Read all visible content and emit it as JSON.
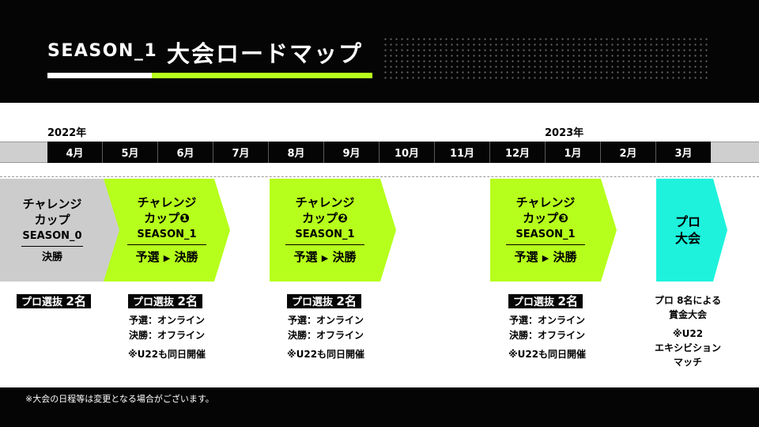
{
  "header": {
    "brand": "SEASON_1",
    "title": "大会ロードマップ",
    "colors": {
      "background": "#050505",
      "accent": "#b6ff1c"
    }
  },
  "timeline": {
    "year_start": "2022年",
    "year_end": "2023年",
    "months": [
      "4月",
      "5月",
      "6月",
      "7月",
      "8月",
      "9月",
      "10月",
      "11月",
      "12月",
      "1月",
      "2月",
      "3月"
    ]
  },
  "events": [
    {
      "name_line1": "チャレンジ",
      "name_line2": "カップ",
      "season": "SEASON_0",
      "stage": "決勝",
      "badge": "プロ選抜",
      "badge_count": "2名",
      "color": "#cccccc"
    },
    {
      "name_line1": "チャレンジ",
      "name_line2": "カップ❶",
      "season": "SEASON_1",
      "stage_from": "予選",
      "stage_arrow": "▶",
      "stage_to": "決勝",
      "badge": "プロ選抜",
      "badge_count": "2名",
      "notes": [
        "予選：オンライン",
        "決勝：オフライン",
        "※U22も同日開催"
      ],
      "color": "#b6ff1c"
    },
    {
      "name_line1": "チャレンジ",
      "name_line2": "カップ❷",
      "season": "SEASON_1",
      "stage_from": "予選",
      "stage_arrow": "▶",
      "stage_to": "決勝",
      "badge": "プロ選抜",
      "badge_count": "2名",
      "notes": [
        "予選：オンライン",
        "決勝：オフライン",
        "※U22も同日開催"
      ],
      "color": "#b6ff1c"
    },
    {
      "name_line1": "チャレンジ",
      "name_line2": "カップ❸",
      "season": "SEASON_1",
      "stage_from": "予選",
      "stage_arrow": "▶",
      "stage_to": "決勝",
      "badge": "プロ選抜",
      "badge_count": "2名",
      "notes": [
        "予選：オンライン",
        "決勝：オフライン",
        "※U22も同日開催"
      ],
      "color": "#b6ff1c"
    },
    {
      "name_line1": "プロ",
      "name_line2": "大会",
      "notes": [
        "プロ 8名による",
        "賞金大会",
        "※U22",
        "エキシビション",
        "マッチ"
      ],
      "color": "#1ef2dc"
    }
  ],
  "footer": {
    "note": "※大会の日程等は変更となる場合がございます。"
  }
}
